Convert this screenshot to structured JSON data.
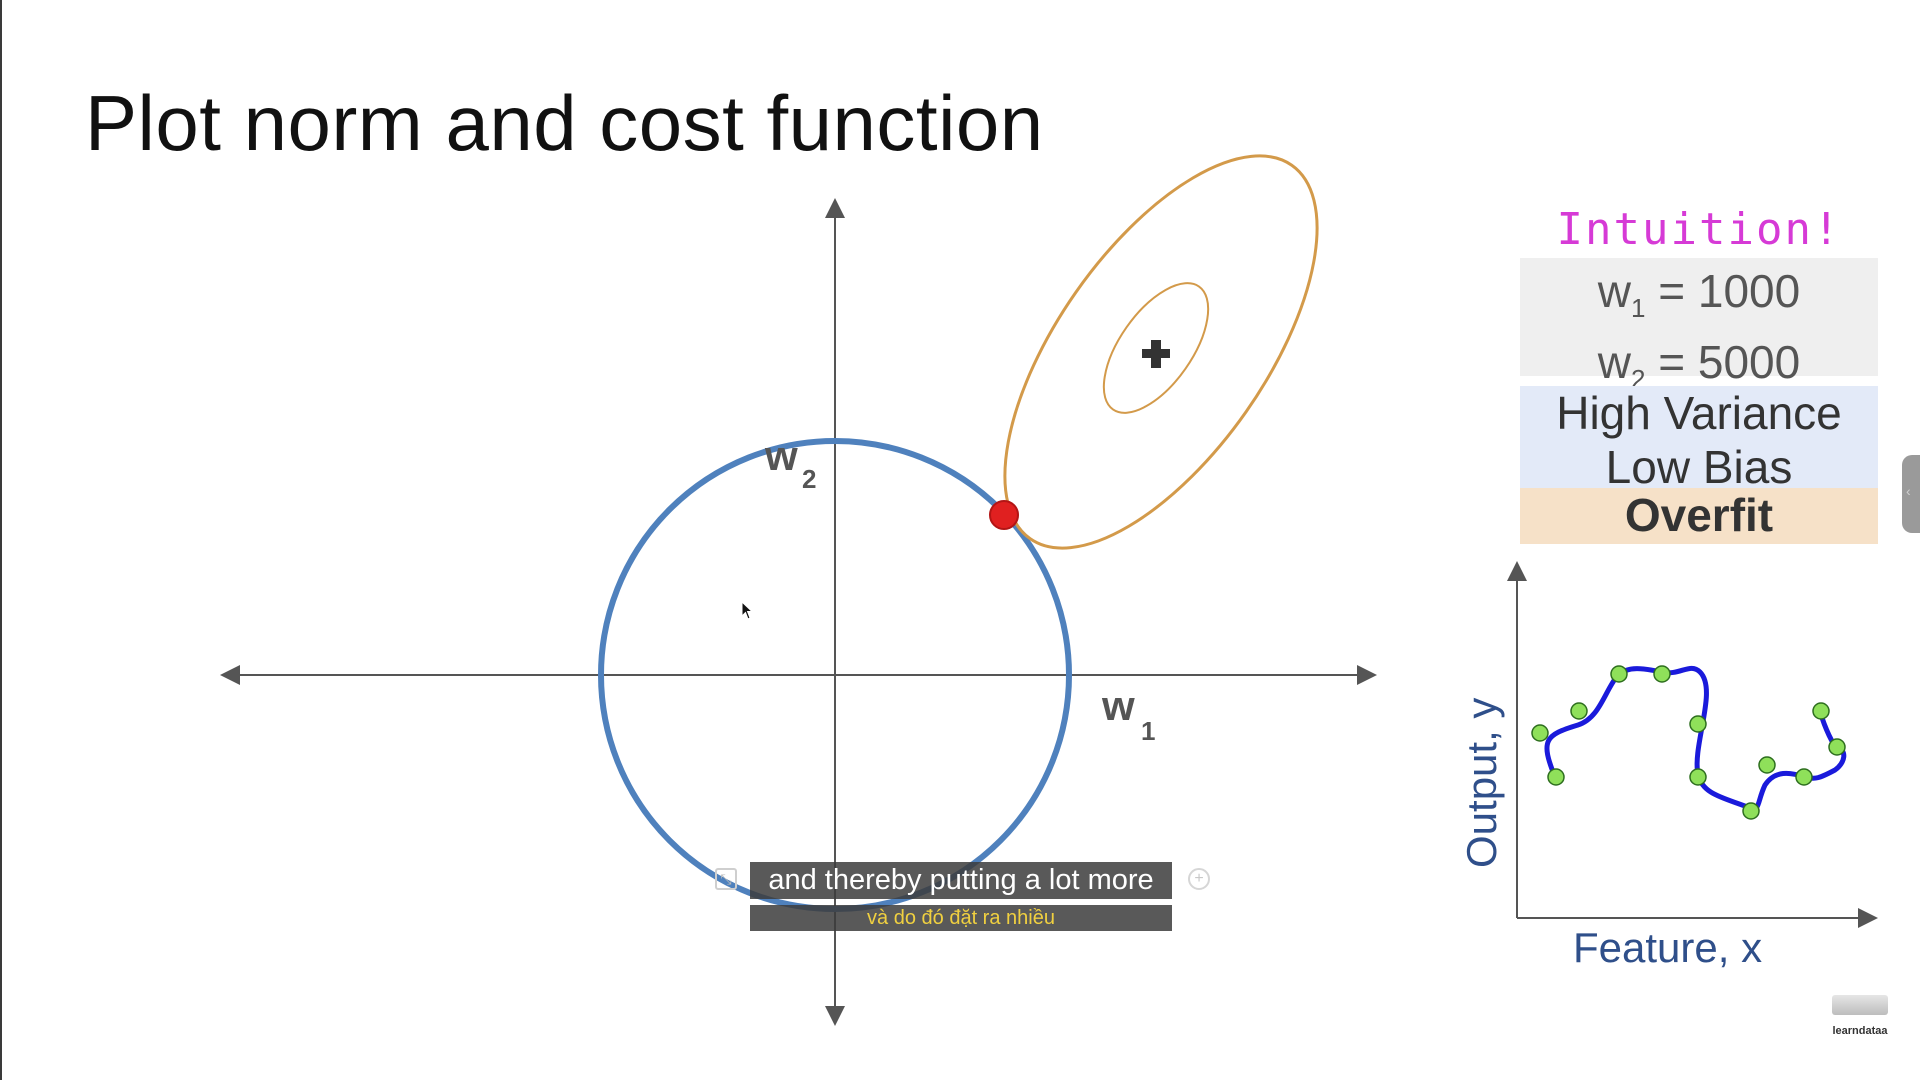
{
  "slide": {
    "title": "Plot norm and cost function"
  },
  "plot": {
    "x_axis_label": "w",
    "x_axis_sub": "1",
    "y_axis_label": "w",
    "y_axis_sub": "2",
    "colors": {
      "norm_circle": "#4f81bd",
      "cost_contours": "#d39a4a",
      "intersection_point": "#e02020",
      "axes": "#555555"
    }
  },
  "panel": {
    "intuition": "Intuition!",
    "w1_label": "w",
    "w1_sub": "1",
    "w1_value": " = 1000",
    "w2_label": "w",
    "w2_sub": "2",
    "w2_value": " = 5000",
    "variance": "High Variance",
    "bias": "Low Bias",
    "fit": "Overfit"
  },
  "mini_chart": {
    "xlabel": "Feature, x",
    "ylabel": "Output, y",
    "colors": {
      "curve": "#1a1adb",
      "points": "#8fe05a"
    }
  },
  "subtitles": {
    "english": "and thereby putting a lot more",
    "vietnamese": "và do đó đặt ra nhiều"
  },
  "logo": {
    "text": "learndataa"
  },
  "icons": [
    "subtitle-settings-icon",
    "add-caption-icon",
    "side-panel-handle-icon",
    "plus-marker-icon",
    "mouse-cursor-icon"
  ]
}
